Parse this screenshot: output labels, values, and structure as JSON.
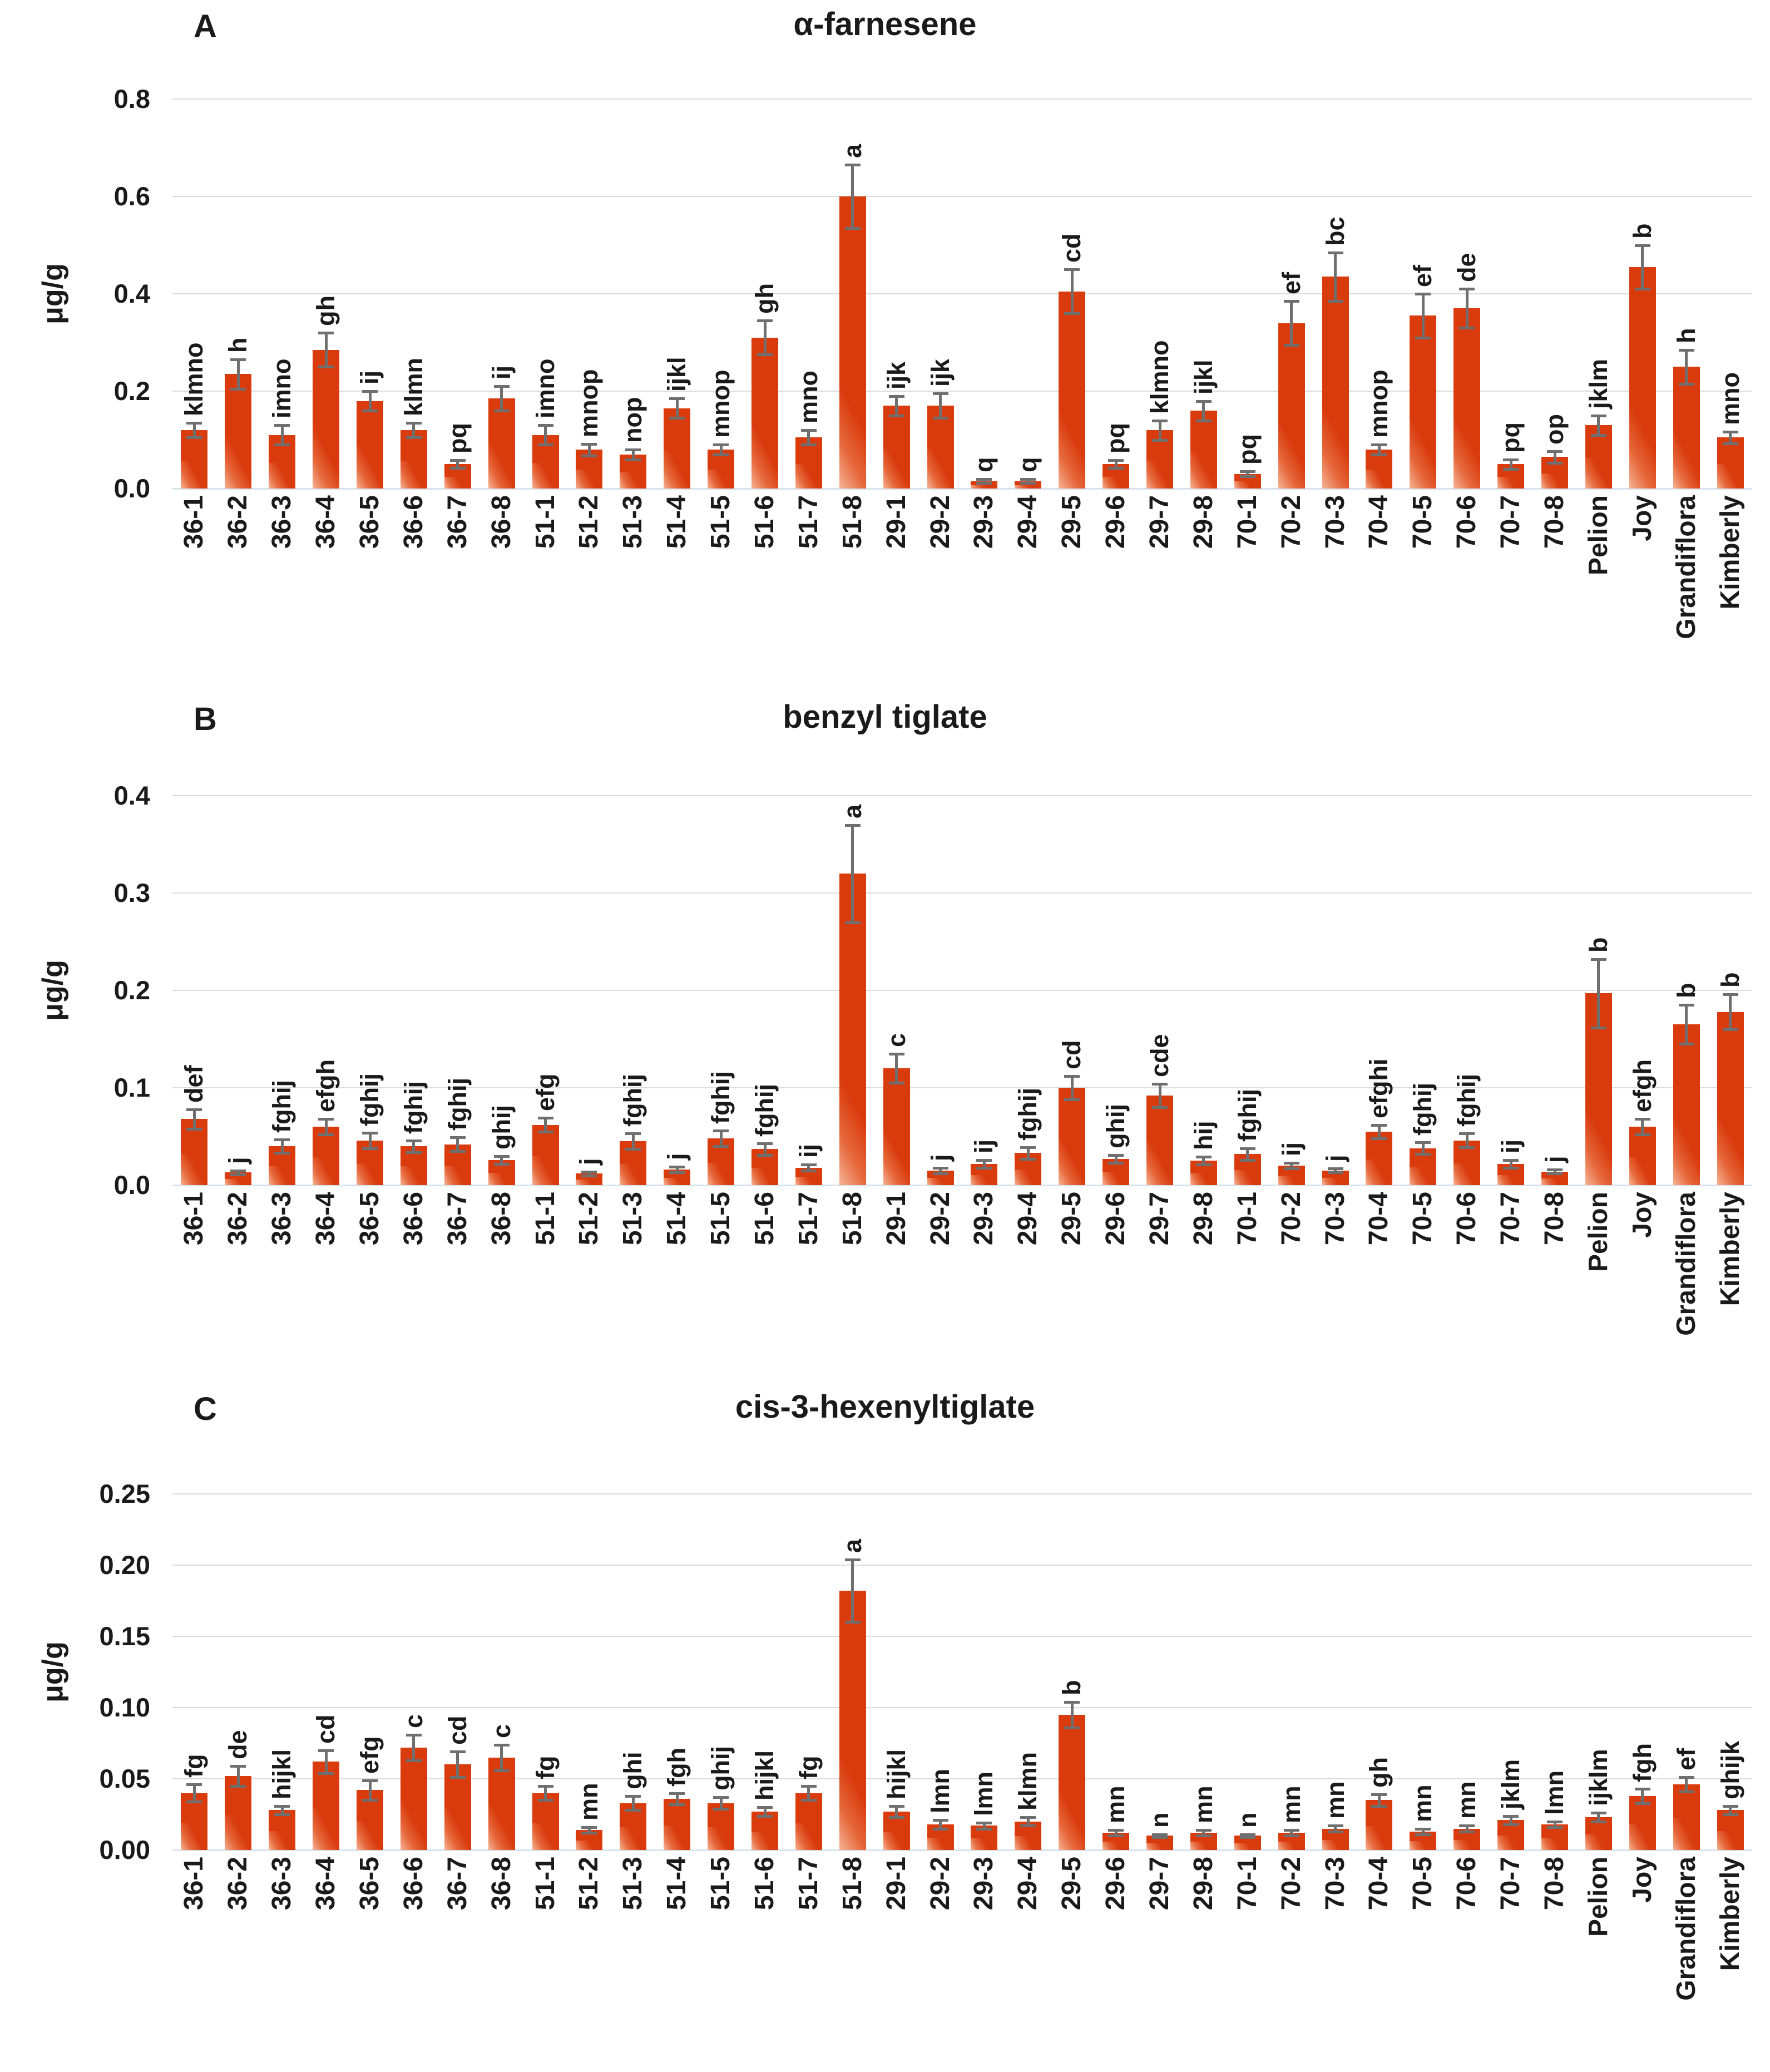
{
  "page": {
    "background": "#ffffff",
    "bar_color": "#d93b0d",
    "bar_highlight": "#f5a277",
    "error_bar_color": "#6f6f6f",
    "gridline_color": "#dcdcdc",
    "baseline_color": "#d6e3ef",
    "text_color": "#1a1a1a"
  },
  "chart_data": [
    {
      "type": "bar",
      "panel": "A",
      "title": "α-farnesene",
      "ylabel": "μg/g",
      "xlabel": "",
      "ylim": [
        0,
        0.8
      ],
      "grid": true,
      "legend": "none",
      "tick_values": [
        0,
        0.2,
        0.4,
        0.6,
        0.8
      ],
      "tick_labels": [
        "0.0",
        "0.2",
        "0.4",
        "0.6",
        "0.8"
      ],
      "categories": [
        "36-1",
        "36-2",
        "36-3",
        "36-4",
        "36-5",
        "36-6",
        "36-7",
        "36-8",
        "51-1",
        "51-2",
        "51-3",
        "51-4",
        "51-5",
        "51-6",
        "51-7",
        "51-8",
        "29-1",
        "29-2",
        "29-3",
        "29-4",
        "29-5",
        "29-6",
        "29-7",
        "29-8",
        "70-1",
        "70-2",
        "70-3",
        "70-4",
        "70-5",
        "70-6",
        "70-7",
        "70-8",
        "Pelion",
        "Joy",
        "Grandiflora",
        "Kimberly"
      ],
      "values": [
        0.12,
        0.235,
        0.11,
        0.285,
        0.18,
        0.12,
        0.05,
        0.185,
        0.11,
        0.08,
        0.07,
        0.165,
        0.08,
        0.31,
        0.105,
        0.6,
        0.17,
        0.17,
        0.015,
        0.015,
        0.405,
        0.05,
        0.12,
        0.16,
        0.03,
        0.34,
        0.435,
        0.08,
        0.355,
        0.37,
        0.05,
        0.065,
        0.13,
        0.455,
        0.25,
        0.105
      ],
      "errors": [
        0.015,
        0.03,
        0.02,
        0.035,
        0.02,
        0.015,
        0.008,
        0.025,
        0.02,
        0.012,
        0.01,
        0.02,
        0.01,
        0.035,
        0.015,
        0.065,
        0.02,
        0.025,
        0.004,
        0.004,
        0.045,
        0.008,
        0.02,
        0.02,
        0.005,
        0.045,
        0.05,
        0.01,
        0.045,
        0.04,
        0.01,
        0.012,
        0.02,
        0.045,
        0.035,
        0.012
      ],
      "letters": [
        "klmno",
        "h",
        "imno",
        "gh",
        "ij",
        "klmn",
        "pq",
        "ij",
        "imno",
        "mnop",
        "nop",
        "ijkl",
        "mnop",
        "gh",
        "mno",
        "a",
        "ijk",
        "ijk",
        "q",
        "q",
        "cd",
        "pq",
        "klmno",
        "ijkl",
        "pq",
        "ef",
        "bc",
        "mnop",
        "ef",
        "de",
        "pq",
        "op",
        "jklm",
        "b",
        "h",
        "mno"
      ]
    },
    {
      "type": "bar",
      "panel": "B",
      "title": "benzyl tiglate",
      "ylabel": "μg/g",
      "xlabel": "",
      "ylim": [
        0,
        0.4
      ],
      "grid": true,
      "legend": "none",
      "tick_values": [
        0,
        0.1,
        0.2,
        0.3,
        0.4
      ],
      "tick_labels": [
        "0.0",
        "0.1",
        "0.2",
        "0.3",
        "0.4"
      ],
      "categories": [
        "36-1",
        "36-2",
        "36-3",
        "36-4",
        "36-5",
        "36-6",
        "36-7",
        "36-8",
        "51-1",
        "51-2",
        "51-3",
        "51-4",
        "51-5",
        "51-6",
        "51-7",
        "51-8",
        "29-1",
        "29-2",
        "29-3",
        "29-4",
        "29-5",
        "29-6",
        "29-7",
        "29-8",
        "70-1",
        "70-2",
        "70-3",
        "70-4",
        "70-5",
        "70-6",
        "70-7",
        "70-8",
        "Pelion",
        "Joy",
        "Grandiflora",
        "Kimberly"
      ],
      "values": [
        0.068,
        0.013,
        0.04,
        0.06,
        0.046,
        0.04,
        0.042,
        0.026,
        0.062,
        0.012,
        0.045,
        0.016,
        0.048,
        0.037,
        0.018,
        0.32,
        0.12,
        0.015,
        0.022,
        0.033,
        0.1,
        0.027,
        0.092,
        0.025,
        0.032,
        0.02,
        0.015,
        0.055,
        0.038,
        0.046,
        0.022,
        0.014,
        0.197,
        0.06,
        0.165,
        0.178
      ],
      "errors": [
        0.01,
        0.002,
        0.007,
        0.008,
        0.008,
        0.006,
        0.007,
        0.004,
        0.007,
        0.002,
        0.008,
        0.003,
        0.008,
        0.006,
        0.003,
        0.05,
        0.015,
        0.003,
        0.004,
        0.006,
        0.012,
        0.004,
        0.012,
        0.004,
        0.006,
        0.003,
        0.002,
        0.007,
        0.006,
        0.007,
        0.004,
        0.002,
        0.035,
        0.008,
        0.02,
        0.018
      ],
      "letters": [
        "def",
        "j",
        "fghij",
        "efgh",
        "fghij",
        "fghij",
        "fghij",
        "ghij",
        "efg",
        "j",
        "fghij",
        "j",
        "fghij",
        "fghij",
        "ij",
        "a",
        "c",
        "j",
        "ij",
        "fghij",
        "cd",
        "ghij",
        "cde",
        "hij",
        "fghij",
        "ij",
        "j",
        "efghi",
        "fghij",
        "fghij",
        "ij",
        "j",
        "b",
        "efgh",
        "b",
        "b"
      ]
    },
    {
      "type": "bar",
      "panel": "C",
      "title": "cis-3-hexenyltiglate",
      "ylabel": "μg/g",
      "xlabel": "",
      "ylim": [
        0,
        0.25
      ],
      "grid": true,
      "legend": "none",
      "tick_values": [
        0,
        0.05,
        0.1,
        0.15,
        0.2,
        0.25
      ],
      "tick_labels": [
        "0.00",
        "0.05",
        "0.10",
        "0.15",
        "0.20",
        "0.25"
      ],
      "categories": [
        "36-1",
        "36-2",
        "36-3",
        "36-4",
        "36-5",
        "36-6",
        "36-7",
        "36-8",
        "51-1",
        "51-2",
        "51-3",
        "51-4",
        "51-5",
        "51-6",
        "51-7",
        "51-8",
        "29-1",
        "29-2",
        "29-3",
        "29-4",
        "29-5",
        "29-6",
        "29-7",
        "29-8",
        "70-1",
        "70-2",
        "70-3",
        "70-4",
        "70-5",
        "70-6",
        "70-7",
        "70-8",
        "Pelion",
        "Joy",
        "Grandiflora",
        "Kimberly"
      ],
      "values": [
        0.04,
        0.052,
        0.028,
        0.062,
        0.042,
        0.072,
        0.06,
        0.065,
        0.04,
        0.014,
        0.033,
        0.036,
        0.033,
        0.027,
        0.04,
        0.182,
        0.027,
        0.018,
        0.017,
        0.02,
        0.095,
        0.012,
        0.01,
        0.012,
        0.01,
        0.012,
        0.015,
        0.035,
        0.013,
        0.015,
        0.021,
        0.018,
        0.023,
        0.038,
        0.046,
        0.028
      ],
      "errors": [
        0.006,
        0.007,
        0.003,
        0.008,
        0.007,
        0.009,
        0.009,
        0.009,
        0.005,
        0.002,
        0.005,
        0.004,
        0.004,
        0.003,
        0.005,
        0.022,
        0.004,
        0.003,
        0.002,
        0.003,
        0.009,
        0.002,
        0.001,
        0.002,
        0.001,
        0.002,
        0.002,
        0.004,
        0.002,
        0.002,
        0.003,
        0.002,
        0.003,
        0.005,
        0.005,
        0.003
      ],
      "letters": [
        "fg",
        "de",
        "hijkl",
        "cd",
        "efg",
        "c",
        "cd",
        "c",
        "fg",
        "mn",
        "ghi",
        "fgh",
        "ghij",
        "hijkl",
        "fg",
        "a",
        "hijkl",
        "lmn",
        "lmn",
        "klmn",
        "b",
        "mn",
        "n",
        "mn",
        "n",
        "mn",
        "mn",
        "gh",
        "mn",
        "mn",
        "jklm",
        "lmn",
        "ijklm",
        "fgh",
        "ef",
        "ghijk"
      ]
    }
  ]
}
